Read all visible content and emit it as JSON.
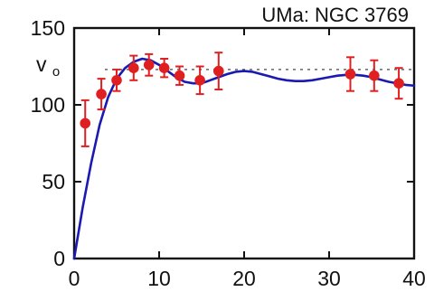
{
  "chart_data": {
    "type": "scatter",
    "title": "UMa: NGC 3769",
    "xlabel": "",
    "ylabel": "",
    "xlim": [
      0,
      40
    ],
    "ylim": [
      0,
      150
    ],
    "x_ticks": [
      0,
      10,
      20,
      30,
      40
    ],
    "y_ticks": [
      0,
      50,
      100,
      150
    ],
    "reference_line": {
      "label_main": "v",
      "label_sub": "o",
      "y": 123,
      "style": "dotted"
    },
    "series": [
      {
        "type": "scatter",
        "color": "#e02020",
        "points": [
          {
            "x": 1.3,
            "y": 88,
            "err": 15
          },
          {
            "x": 3.2,
            "y": 107,
            "err": 10
          },
          {
            "x": 5.0,
            "y": 116,
            "err": 7
          },
          {
            "x": 7.0,
            "y": 124,
            "err": 8
          },
          {
            "x": 8.8,
            "y": 126,
            "err": 7
          },
          {
            "x": 10.6,
            "y": 124,
            "err": 6
          },
          {
            "x": 12.4,
            "y": 119,
            "err": 6
          },
          {
            "x": 14.8,
            "y": 116,
            "err": 9
          },
          {
            "x": 17.0,
            "y": 122,
            "err": 12
          },
          {
            "x": 32.5,
            "y": 120,
            "err": 11
          },
          {
            "x": 35.3,
            "y": 119,
            "err": 10
          },
          {
            "x": 38.2,
            "y": 114,
            "err": 10
          }
        ]
      },
      {
        "type": "line",
        "color": "#1a1ab0",
        "points": [
          [
            0,
            0
          ],
          [
            1,
            33
          ],
          [
            2,
            62
          ],
          [
            3,
            87
          ],
          [
            4,
            105
          ],
          [
            5,
            117
          ],
          [
            6,
            124
          ],
          [
            7,
            128
          ],
          [
            8,
            130
          ],
          [
            9,
            129
          ],
          [
            10,
            126
          ],
          [
            11,
            122
          ],
          [
            12,
            118
          ],
          [
            13,
            115
          ],
          [
            14,
            114
          ],
          [
            15,
            114
          ],
          [
            16,
            116
          ],
          [
            17,
            118
          ],
          [
            18,
            120
          ],
          [
            19,
            121.5
          ],
          [
            20,
            122
          ],
          [
            21,
            121.5
          ],
          [
            22,
            120
          ],
          [
            23,
            118.5
          ],
          [
            24,
            117
          ],
          [
            25,
            116
          ],
          [
            26,
            115.5
          ],
          [
            27,
            115.5
          ],
          [
            28,
            116
          ],
          [
            29,
            117
          ],
          [
            30,
            118
          ],
          [
            31,
            119
          ],
          [
            32,
            119.5
          ],
          [
            33,
            119.5
          ],
          [
            34,
            119
          ],
          [
            35,
            118
          ],
          [
            36,
            116.5
          ],
          [
            37,
            115
          ],
          [
            38,
            114
          ],
          [
            39,
            113
          ],
          [
            40,
            112.5
          ]
        ]
      }
    ],
    "grid": false,
    "legend": "none"
  }
}
